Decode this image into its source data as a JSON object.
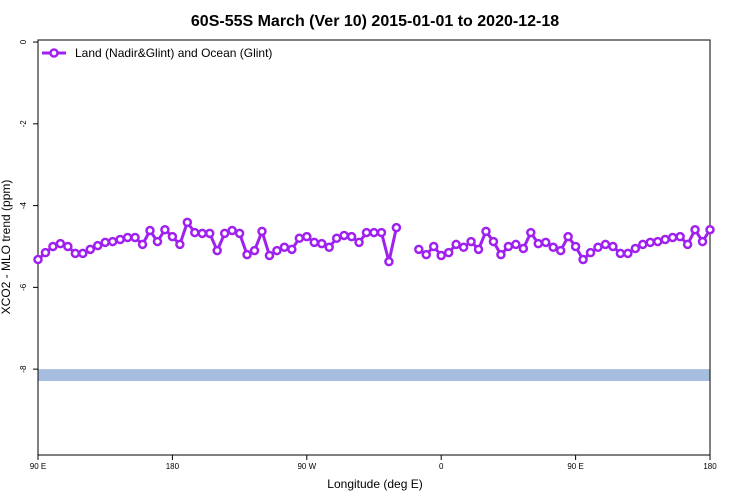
{
  "chart_data": {
    "type": "line",
    "title": "60S-55S March (Ver 10)   2015-01-01 to 2020-12-18",
    "xlabel": "Longitude (deg E)",
    "ylabel": "XCO2 - MLO trend (ppm)",
    "xlim": [
      90,
      540
    ],
    "ylim": [
      -10.1,
      0.05
    ],
    "xticks": [
      {
        "value": 90,
        "label": "90 E"
      },
      180,
      {
        "value": 270,
        "label": "90 W"
      },
      {
        "value": 360,
        "label": "0"
      },
      {
        "value": 450,
        "label": "90 E"
      },
      {
        "value": 540,
        "label": "180"
      }
    ],
    "yticks": [
      0,
      -2,
      -4,
      -6,
      -8
    ],
    "legend": "top-left",
    "band": {
      "values": [
        -8.0,
        -8.29
      ],
      "color": "#a6bddf"
    },
    "x": [
      90,
      95,
      100,
      105,
      110,
      115,
      120,
      125,
      130,
      135,
      140,
      145,
      150,
      155,
      160,
      165,
      170,
      175,
      180,
      185,
      190,
      195,
      200,
      205,
      210,
      215,
      220,
      225,
      230,
      235,
      240,
      245,
      250,
      255,
      260,
      265,
      270,
      275,
      280,
      285,
      290,
      295,
      300,
      305,
      310,
      315,
      320,
      325,
      330,
      335,
      340,
      345,
      350,
      355,
      360,
      365,
      370,
      375,
      380,
      385,
      390,
      395,
      400,
      405,
      410,
      415,
      420,
      425,
      430,
      435,
      440,
      445,
      450,
      455,
      460,
      465,
      470,
      475,
      480,
      485,
      490,
      495,
      500,
      505,
      510,
      515,
      520,
      525,
      530,
      535,
      540
    ],
    "series": [
      {
        "name": "Land (Nadir&Glint) and Ocean (Glint)",
        "color": "#a020f0",
        "values": [
          -5.32,
          -5.15,
          -5.0,
          -4.93,
          -5.0,
          -5.17,
          -5.17,
          -5.07,
          -4.98,
          -4.9,
          -4.88,
          -4.83,
          -4.78,
          -4.78,
          -4.95,
          -4.61,
          -4.88,
          -4.59,
          -4.76,
          -4.95,
          -4.41,
          -4.66,
          -4.68,
          -4.68,
          -5.1,
          -4.68,
          -4.61,
          -4.68,
          -5.2,
          -5.1,
          -4.63,
          -5.22,
          -5.1,
          -5.02,
          -5.07,
          -4.8,
          -4.76,
          -4.9,
          -4.93,
          -5.02,
          -4.8,
          -4.73,
          -4.76,
          -4.9,
          -4.66,
          -4.66,
          -4.66,
          -5.37,
          -4.54,
          null,
          null,
          -5.07,
          -5.2,
          -5.0,
          -5.22,
          -5.15,
          -4.95,
          -5.02,
          -4.88,
          -5.07,
          -4.63,
          -4.88,
          -5.2,
          -5.0,
          -4.95,
          -5.05,
          -4.66,
          -4.93,
          -4.9,
          -5.02,
          -5.1,
          -4.76,
          -5.0,
          -5.32,
          -5.15,
          -5.02,
          -4.95,
          -5.0,
          -5.17,
          -5.17,
          -5.05,
          -4.95,
          -4.9,
          -4.88,
          -4.83,
          -4.78,
          -4.76,
          -4.95,
          -4.59,
          -4.88,
          -4.59
        ]
      }
    ]
  }
}
